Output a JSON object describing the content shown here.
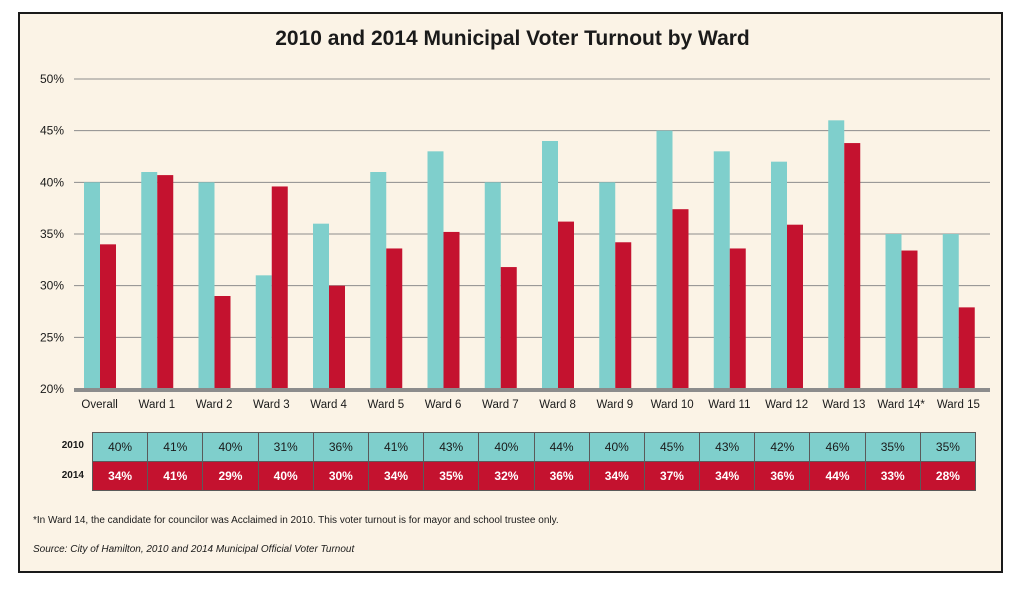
{
  "chart_data": {
    "type": "bar",
    "title": "2010 and 2014 Municipal Voter Turnout by Ward",
    "categories": [
      "Overall",
      "Ward 1",
      "Ward 2",
      "Ward 3",
      "Ward 4",
      "Ward 5",
      "Ward 6",
      "Ward 7",
      "Ward 8",
      "Ward 9",
      "Ward 10",
      "Ward 11",
      "Ward 12",
      "Ward 13",
      "Ward 14*",
      "Ward 15"
    ],
    "series": [
      {
        "name": "2010",
        "color": "#7fcfcc",
        "values": [
          40,
          41,
          40,
          31,
          36,
          41,
          43,
          40,
          44,
          40,
          45,
          43,
          42,
          46,
          35,
          35
        ],
        "labels": [
          "40%",
          "41%",
          "40%",
          "31%",
          "36%",
          "41%",
          "43%",
          "40%",
          "44%",
          "40%",
          "45%",
          "43%",
          "42%",
          "46%",
          "35%",
          "35%"
        ]
      },
      {
        "name": "2014",
        "color": "#c4122f",
        "values": [
          34,
          40.7,
          29,
          39.6,
          30,
          33.6,
          35.2,
          31.8,
          36.2,
          34.2,
          37.4,
          33.6,
          35.9,
          43.8,
          33.4,
          27.9
        ],
        "labels": [
          "34%",
          "41%",
          "29%",
          "40%",
          "30%",
          "34%",
          "35%",
          "32%",
          "36%",
          "34%",
          "37%",
          "34%",
          "36%",
          "44%",
          "33%",
          "28%"
        ]
      }
    ],
    "ylim": [
      20,
      50
    ],
    "yticks": [
      20,
      25,
      30,
      35,
      40,
      45,
      50
    ],
    "ytick_labels": [
      "20%",
      "25%",
      "30%",
      "35%",
      "40%",
      "45%",
      "50%"
    ],
    "grid": true,
    "xlabel": "",
    "ylabel": ""
  },
  "footnote": "*In Ward 14, the candidate for councilor was Acclaimed in 2010.  This voter turnout is for mayor and school trustee only.",
  "source": "Source: City of Hamilton, 2010 and 2014 Municipal Official Voter Turnout"
}
